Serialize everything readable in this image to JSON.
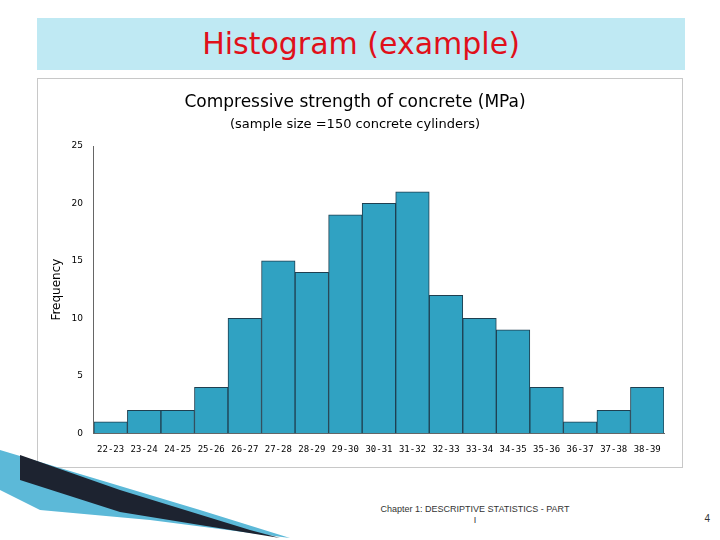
{
  "header": {
    "title": "Histogram (example)"
  },
  "chart_data": {
    "type": "bar",
    "title": "Compressive strength of concrete (MPa)",
    "subtitle": "(sample size =150 concrete cylinders)",
    "y_label": "Frequency",
    "categories": [
      "22-23",
      "23-24",
      "24-25",
      "25-26",
      "26-27",
      "27-28",
      "28-29",
      "29-30",
      "30-31",
      "31-32",
      "32-33",
      "33-34",
      "34-35",
      "35-36",
      "36-37",
      "37-38",
      "38-39"
    ],
    "values": [
      1,
      2,
      2,
      4,
      10,
      15,
      14,
      19,
      20,
      21,
      12,
      10,
      9,
      4,
      1,
      2,
      4
    ],
    "color": "#30a2c2",
    "ylim": [
      0,
      25
    ],
    "yticks": [
      0,
      5,
      10,
      15,
      20,
      25
    ],
    "grid": false
  },
  "footer": {
    "text": "Chapter 1: DESCRIPTIVE STATISTICS - PART I",
    "page": 4
  }
}
